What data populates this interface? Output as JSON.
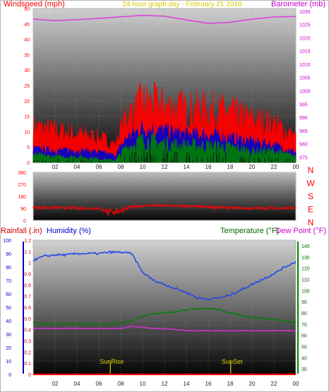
{
  "colors": {
    "wind_speed": "#ff0000",
    "wind_gust_band": "#0000cc",
    "wind_avg": "#008000",
    "barometer": "#dd44dd",
    "direction": "#ff0000",
    "humidity": "#2244ee",
    "temperature": "#008000",
    "dew_point": "#cc33cc",
    "rainfall": "#ff0000",
    "sun_marker": "#d4cc00",
    "axis_red": "#ff0000",
    "axis_magenta": "#cc00cc",
    "axis_blue": "#0000cc",
    "axis_green": "#006600"
  },
  "icons": [],
  "chart_data": [
    {
      "type": "line",
      "title": "24 hour graph day - February 21 2018",
      "left_axis_label": "Windspeed (mph)",
      "right_axis_label": "Barometer (mb)",
      "x_ticks": [
        "02",
        "04",
        "06",
        "08",
        "10",
        "12",
        "14",
        "16",
        "18",
        "20",
        "22",
        "00"
      ],
      "left_ticks": [
        "0",
        "5",
        "10",
        "15",
        "20",
        "25",
        "30",
        "35",
        "40",
        "45",
        "50"
      ],
      "right_ticks": [
        "975",
        "980",
        "985",
        "990",
        "995",
        "1000",
        "1005",
        "1010",
        "1015",
        "1020",
        "1025",
        "1030"
      ],
      "ylim_left": [
        0,
        50
      ],
      "ylim_right": [
        973,
        1031
      ],
      "x_hours": [
        0,
        2,
        4,
        6,
        7.5,
        8.5,
        10,
        12,
        14,
        16,
        18,
        20,
        22,
        24
      ],
      "series": [
        {
          "values": [
            10,
            9,
            8,
            7,
            5,
            13,
            17,
            16,
            15,
            15,
            14,
            12,
            11,
            7
          ]
        },
        {
          "values": [
            4,
            3.5,
            3.5,
            3,
            2,
            7,
            10,
            9,
            8,
            8,
            7,
            6,
            5,
            3
          ]
        },
        {
          "values": [
            2,
            1.5,
            1.5,
            1,
            0.5,
            4,
            6,
            5,
            4.5,
            4.5,
            4,
            3,
            3,
            1.5
          ]
        },
        {
          "values": [
            1027.0,
            1026.4,
            1026.8,
            1027.3,
            1027.7,
            1028.0,
            1028.4,
            1028.1,
            1026.7,
            1025.4,
            1025.8,
            1027.0,
            1027.8,
            1028.0
          ]
        }
      ]
    },
    {
      "type": "scatter",
      "y_ticks": [
        "360",
        "270",
        "180",
        "90",
        "0"
      ],
      "ylim": [
        0,
        360
      ],
      "compass_labels": [
        "N",
        "W",
        "S",
        "E",
        "N"
      ],
      "x_hours": [
        0,
        2,
        4,
        6,
        7,
        8,
        9,
        10,
        12,
        14,
        16,
        18,
        20,
        22,
        24
      ],
      "series": [
        {
          "values": [
            95,
            95,
            92,
            90,
            60,
            75,
            100,
            110,
            110,
            105,
            100,
            95,
            90,
            92,
            92
          ]
        }
      ]
    },
    {
      "type": "line",
      "left_axis_labels": [
        "Rainfall (.in)",
        "Humidity (%)"
      ],
      "right_axis_labels": [
        "Temperature (°F)",
        "Dew Point (°F)"
      ],
      "x_ticks": [
        "02",
        "04",
        "06",
        "08",
        "10",
        "12",
        "14",
        "16",
        "18",
        "20",
        "22",
        "00"
      ],
      "rain_ticks": [
        "0",
        "0.1",
        "0.2",
        "0.3",
        "0.4",
        "0.5",
        "0.6",
        "0.7",
        "0.8",
        "0.9",
        "1",
        "1.1",
        "1.2"
      ],
      "humidity_ticks": [
        "0",
        "10",
        "20",
        "30",
        "40",
        "50",
        "60",
        "70",
        "80",
        "90",
        "100"
      ],
      "temp_ticks": [
        "30",
        "40",
        "50",
        "60",
        "70",
        "80",
        "90",
        "100",
        "110",
        "120",
        "130",
        "140"
      ],
      "ylim_humidity": [
        0,
        100
      ],
      "ylim_rain": [
        0,
        1.2
      ],
      "ylim_temp": [
        25,
        145
      ],
      "sun_events": [
        {
          "label": "SunRise",
          "hour": 7.05
        },
        {
          "label": "SunSet",
          "hour": 18.05
        }
      ],
      "x_hours": [
        0,
        1,
        2,
        3,
        4,
        5,
        6,
        7,
        8,
        9,
        10,
        11,
        12,
        13,
        14,
        15,
        16,
        17,
        18,
        19,
        20,
        21,
        22,
        23,
        24
      ],
      "series": [
        {
          "values": [
            85,
            88,
            89,
            89,
            90,
            90,
            90,
            91,
            91,
            90,
            76,
            70,
            67,
            64,
            61,
            57,
            56,
            57,
            59,
            63,
            67,
            71,
            75,
            80,
            84
          ]
        },
        {
          "values": [
            71,
            70,
            70,
            70,
            70,
            70,
            70,
            70,
            71,
            73,
            77,
            79,
            80,
            81,
            83,
            84,
            84,
            83,
            80,
            78,
            76,
            75,
            74,
            73,
            71
          ]
        },
        {
          "values": [
            66,
            66,
            66,
            66,
            66,
            66,
            66,
            66,
            66,
            68,
            67,
            66,
            66,
            65,
            64,
            64,
            64,
            64,
            64,
            64,
            64,
            64,
            64,
            64,
            64
          ]
        },
        {
          "values": [
            0,
            0,
            0,
            0,
            0,
            0,
            0,
            0,
            0,
            0,
            0,
            0,
            0,
            0,
            0,
            0,
            0,
            0,
            0,
            0,
            0,
            0,
            0,
            0,
            0
          ]
        }
      ]
    }
  ]
}
